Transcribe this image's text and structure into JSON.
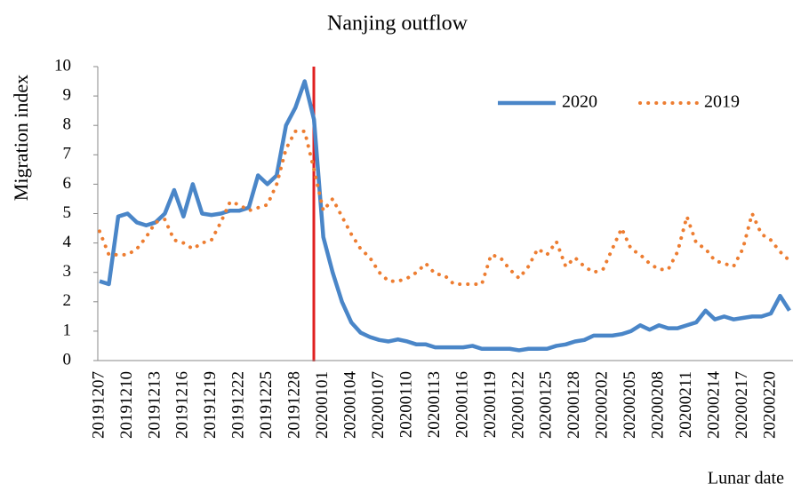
{
  "chart_data": {
    "type": "line",
    "title": "Nanjing outflow",
    "x_label": "Lunar date",
    "y_label": "Migration index",
    "categories": [
      "20191207",
      null,
      null,
      "20191210",
      null,
      null,
      "20191213",
      null,
      null,
      "20191216",
      null,
      null,
      "20191219",
      null,
      null,
      "20191222",
      null,
      null,
      "20191225",
      null,
      null,
      "20191228",
      null,
      null,
      "20200101",
      null,
      null,
      "20200104",
      null,
      null,
      "20200107",
      null,
      null,
      "20200110",
      null,
      null,
      "20200113",
      null,
      null,
      "20200116",
      null,
      null,
      "20200119",
      null,
      null,
      "20200122",
      null,
      null,
      "20200125",
      null,
      null,
      "20200128",
      null,
      null,
      "20200202",
      null,
      null,
      "20200205",
      null,
      null,
      "20200208",
      null,
      null,
      "20200211",
      null,
      null,
      "20200214",
      null,
      null,
      "20200217",
      null,
      null,
      "20200220",
      null,
      null
    ],
    "series": [
      {
        "name": "2020",
        "color": "#4a86c8",
        "style": "solid",
        "values": [
          2.7,
          2.6,
          4.9,
          5.0,
          4.7,
          4.6,
          4.7,
          5.0,
          5.8,
          4.9,
          6.0,
          5.0,
          4.95,
          5.0,
          5.1,
          5.1,
          5.2,
          6.3,
          6.0,
          6.3,
          8.0,
          8.6,
          9.5,
          8.2,
          4.2,
          3.0,
          2.0,
          1.3,
          0.95,
          0.8,
          0.7,
          0.65,
          0.72,
          0.65,
          0.55,
          0.55,
          0.45,
          0.45,
          0.45,
          0.45,
          0.5,
          0.4,
          0.4,
          0.4,
          0.4,
          0.35,
          0.4,
          0.4,
          0.4,
          0.5,
          0.55,
          0.65,
          0.7,
          0.85,
          0.85,
          0.85,
          0.9,
          1.0,
          1.2,
          1.05,
          1.2,
          1.1,
          1.1,
          1.2,
          1.3,
          1.7,
          1.4,
          1.5,
          1.4,
          1.45,
          1.5,
          1.5,
          1.6,
          2.2,
          1.7
        ]
      },
      {
        "name": "2019",
        "color": "#ed7d31",
        "style": "dotted",
        "values": [
          4.4,
          3.6,
          3.6,
          3.6,
          3.8,
          4.2,
          4.7,
          4.8,
          4.1,
          4.0,
          3.8,
          4.0,
          4.1,
          4.7,
          5.4,
          5.3,
          5.1,
          5.2,
          5.3,
          6.0,
          7.2,
          7.8,
          7.8,
          6.5,
          5.1,
          5.5,
          4.9,
          4.3,
          3.8,
          3.5,
          3.0,
          2.7,
          2.7,
          2.8,
          3.0,
          3.3,
          2.95,
          2.9,
          2.6,
          2.6,
          2.6,
          2.6,
          3.6,
          3.5,
          3.1,
          2.8,
          3.2,
          3.8,
          3.6,
          4.05,
          3.2,
          3.5,
          3.2,
          3.0,
          3.1,
          3.8,
          4.5,
          3.8,
          3.6,
          3.3,
          3.1,
          3.1,
          3.7,
          4.9,
          4.0,
          3.8,
          3.4,
          3.3,
          3.2,
          3.8,
          5.0,
          4.3,
          4.1,
          3.7,
          3.4
        ]
      }
    ],
    "ylim": [
      0,
      10
    ],
    "yticks": [
      0,
      1,
      2,
      3,
      4,
      5,
      6,
      7,
      8,
      9,
      10
    ]
  }
}
